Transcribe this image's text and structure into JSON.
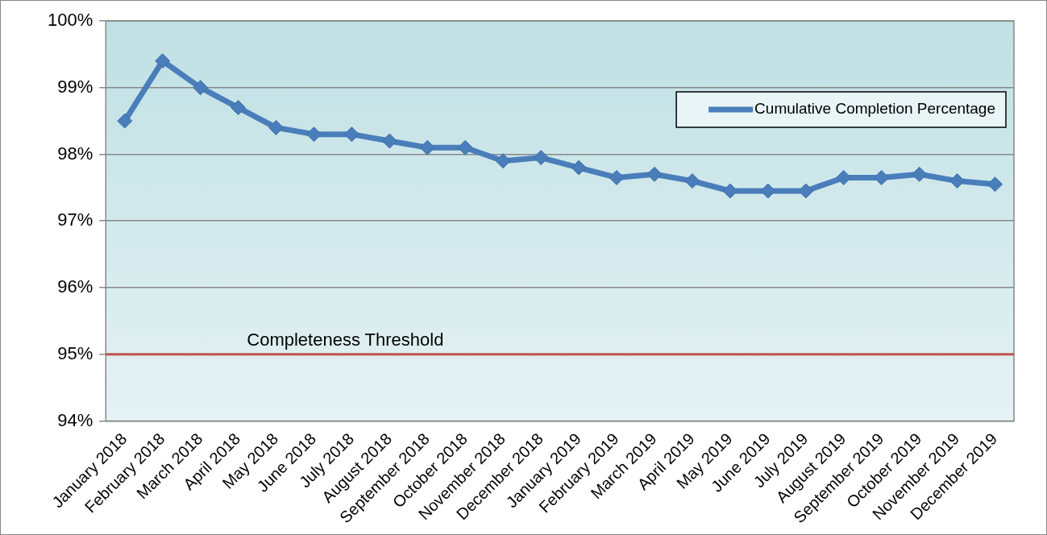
{
  "chart_data": {
    "type": "line",
    "categories": [
      "January 2018",
      "February 2018",
      "March 2018",
      "April 2018",
      "May 2018",
      "June 2018",
      "July 2018",
      "August 2018",
      "September 2018",
      "October 2018",
      "November 2018",
      "December 2018",
      "January 2019",
      "February 2019",
      "March 2019",
      "April 2019",
      "May 2019",
      "June 2019",
      "July 2019",
      "August 2019",
      "September 2019",
      "October 2019",
      "November 2019",
      "December 2019"
    ],
    "series": [
      {
        "name": "Cumulative Completion Percentage",
        "color": "#4a7ebb",
        "values": [
          98.5,
          99.4,
          99.0,
          98.7,
          98.4,
          98.3,
          98.3,
          98.2,
          98.1,
          98.1,
          97.9,
          97.95,
          97.8,
          97.65,
          97.7,
          97.6,
          97.45,
          97.45,
          97.45,
          97.65,
          97.65,
          97.7,
          97.6,
          97.55
        ]
      }
    ],
    "ylim": [
      94,
      100
    ],
    "yticks": [
      {
        "value": 94,
        "label": "94%"
      },
      {
        "value": 95,
        "label": "95%"
      },
      {
        "value": 96,
        "label": "96%"
      },
      {
        "value": 97,
        "label": "97%"
      },
      {
        "value": 98,
        "label": "98%"
      },
      {
        "value": 99,
        "label": "99%"
      },
      {
        "value": 100,
        "label": "100%"
      }
    ],
    "ref_lines": [
      {
        "axis": "y",
        "value": 95,
        "label": "Completeness Threshold",
        "color": "#c0504d"
      }
    ],
    "grid": "y",
    "legend": "top right",
    "marker": "diamond",
    "line_style": "solid"
  }
}
